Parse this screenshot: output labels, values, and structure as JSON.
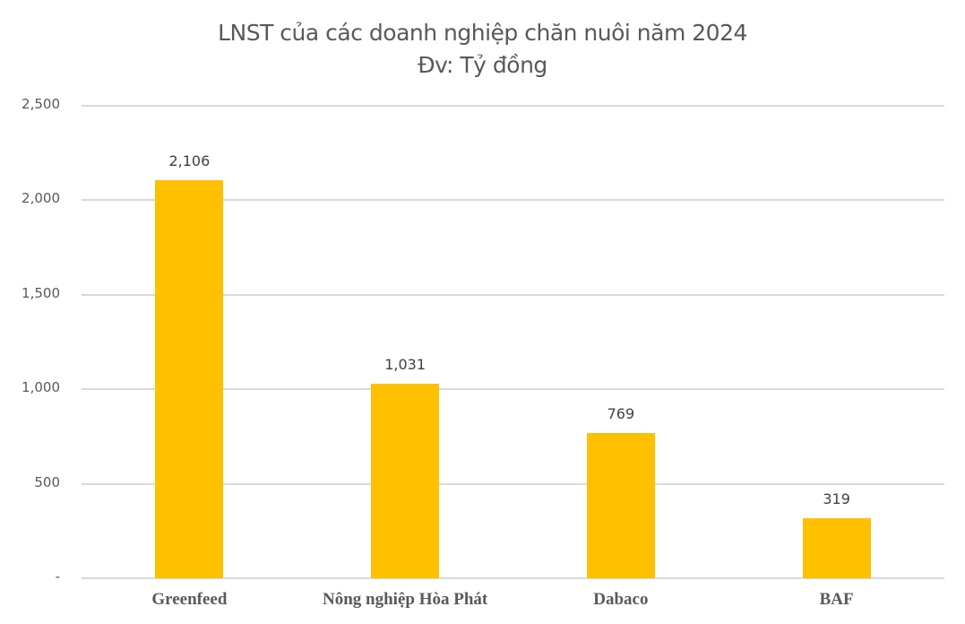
{
  "chart_data": {
    "type": "bar",
    "title": "LNST của các doanh nghiệp chăn nuôi năm 2024",
    "subtitle": "Đv: Tỷ đồng",
    "categories": [
      "Greenfeed",
      "Nông nghiệp Hòa Phát",
      "Dabaco",
      "BAF"
    ],
    "values": [
      2106,
      1031,
      769,
      319
    ],
    "data_labels": [
      "2,106",
      "1,031",
      "769",
      "319"
    ],
    "xlabel": "",
    "ylabel": "",
    "ylim": [
      0,
      2500
    ],
    "yticks": [
      0,
      500,
      1000,
      1500,
      2000,
      2500
    ],
    "ytick_labels": [
      "-",
      "500",
      "1,000",
      "1,500",
      "2,000",
      "2,500"
    ],
    "grid": true,
    "legend": null,
    "bar_color": "#FFC000"
  },
  "title_line1": "LNST của các doanh nghiệp chăn nuôi năm 2024",
  "title_line2": "Đv: Tỷ đồng",
  "y_axis": {
    "ticks": [
      {
        "label": "2,500",
        "value": 2500
      },
      {
        "label": "2,000",
        "value": 2000
      },
      {
        "label": "1,500",
        "value": 1500
      },
      {
        "label": "1,000",
        "value": 1000
      },
      {
        "label": "500",
        "value": 500
      },
      {
        "label": "-",
        "value": 0
      }
    ]
  },
  "bars": [
    {
      "category": "Greenfeed",
      "value": 2106,
      "label": "2,106"
    },
    {
      "category": "Nông nghiệp Hòa Phát",
      "value": 1031,
      "label": "1,031"
    },
    {
      "category": "Dabaco",
      "value": 769,
      "label": "769"
    },
    {
      "category": "BAF",
      "value": 319,
      "label": "319"
    }
  ],
  "colors": {
    "bar": "#FFC000",
    "gridline": "#D9D9D9",
    "text": "#595959"
  }
}
